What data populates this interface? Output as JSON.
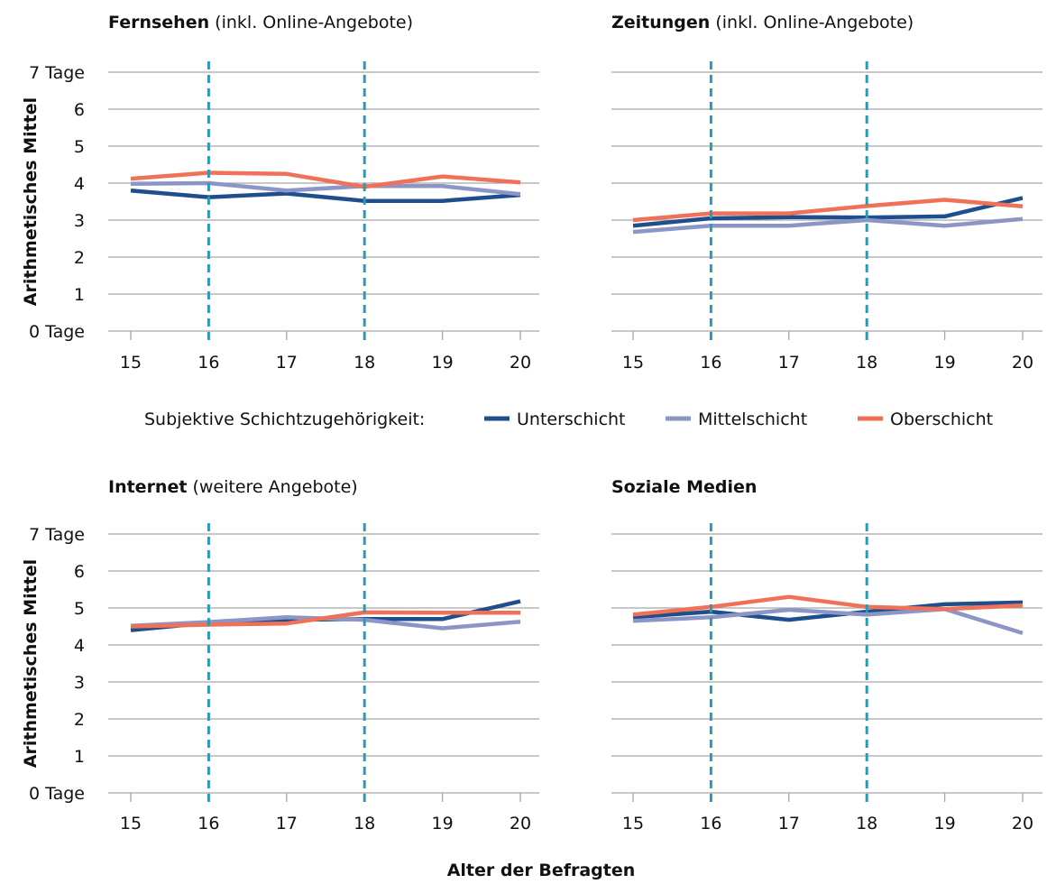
{
  "chart_data": {
    "type": "line",
    "y_axis_label": "Arithmetisches Mittel",
    "x_axis_title": "Alter der Befragten",
    "x": [
      15,
      16,
      17,
      18,
      19,
      20
    ],
    "ylim": [
      0,
      7
    ],
    "y_ticks": [
      "0 Tage",
      "1",
      "2",
      "3",
      "4",
      "5",
      "6",
      "7 Tage"
    ],
    "reference_lines_x": [
      16,
      18
    ],
    "legend": {
      "title": "Subjektive Schichtzugehörigkeit:",
      "entries": [
        "Unterschicht",
        "Mittelschicht",
        "Oberschicht"
      ]
    },
    "colors": {
      "Unterschicht": "#1f4e8c",
      "Mittelschicht": "#8c96c6",
      "Oberschicht": "#ef7157",
      "reference": "#2a9bb7",
      "grid": "#a6a6a6"
    },
    "panels": [
      {
        "title_bold": "Fernsehen",
        "title_rest": " (inkl. Online-Angebote)",
        "series": [
          {
            "name": "Unterschicht",
            "values": [
              3.8,
              3.62,
              3.72,
              3.52,
              3.52,
              3.68
            ]
          },
          {
            "name": "Mittelschicht",
            "values": [
              3.98,
              4.0,
              3.8,
              3.92,
              3.92,
              3.7
            ]
          },
          {
            "name": "Oberschicht",
            "values": [
              4.12,
              4.28,
              4.25,
              3.9,
              4.18,
              4.02
            ]
          }
        ]
      },
      {
        "title_bold": "Zeitungen",
        "title_rest": " (inkl. Online-Angebote)",
        "series": [
          {
            "name": "Unterschicht",
            "values": [
              2.85,
              3.05,
              3.08,
              3.07,
              3.1,
              3.6
            ]
          },
          {
            "name": "Mittelschicht",
            "values": [
              2.68,
              2.85,
              2.85,
              3.0,
              2.85,
              3.03
            ]
          },
          {
            "name": "Oberschicht",
            "values": [
              3.0,
              3.18,
              3.18,
              3.38,
              3.55,
              3.37
            ]
          }
        ]
      },
      {
        "title_bold": "Internet",
        "title_rest": " (weitere Angebote)",
        "series": [
          {
            "name": "Unterschicht",
            "values": [
              4.4,
              4.6,
              4.68,
              4.7,
              4.7,
              5.18
            ]
          },
          {
            "name": "Mittelschicht",
            "values": [
              4.52,
              4.62,
              4.75,
              4.68,
              4.45,
              4.63
            ]
          },
          {
            "name": "Oberschicht",
            "values": [
              4.5,
              4.55,
              4.58,
              4.88,
              4.87,
              4.87
            ]
          }
        ]
      },
      {
        "title_bold": "Soziale Medien",
        "title_rest": "",
        "series": [
          {
            "name": "Unterschicht",
            "values": [
              4.75,
              4.9,
              4.68,
              4.9,
              5.1,
              5.15
            ]
          },
          {
            "name": "Mittelschicht",
            "values": [
              4.65,
              4.75,
              4.95,
              4.82,
              4.97,
              4.32
            ]
          },
          {
            "name": "Oberschicht",
            "values": [
              4.82,
              5.03,
              5.3,
              5.03,
              4.97,
              5.07
            ]
          }
        ]
      }
    ]
  }
}
